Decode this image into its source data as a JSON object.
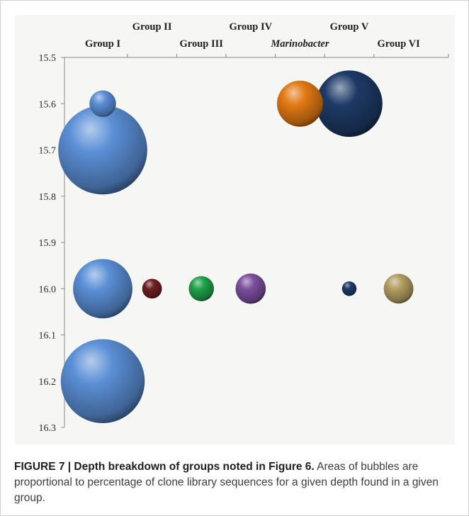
{
  "caption": {
    "label": "FIGURE 7 | Depth breakdown of groups noted in ",
    "ref": "Figure 6",
    "period": ".",
    "text": " Areas of bubbles are proportional to percentage of clone library sequences for a given depth found in a given group."
  },
  "chart_data": {
    "type": "bubble",
    "categories": [
      "Group I",
      "Group II",
      "Group III",
      "Group IV",
      "Marinobacter",
      "Group V",
      "Group VI"
    ],
    "italic_categories": [
      "Marinobacter"
    ],
    "y_reversed": true,
    "ylim": [
      15.5,
      16.3
    ],
    "yticks": [
      "15.5",
      "15.6",
      "15.7",
      "15.8",
      "15.9",
      "16.0",
      "16.1",
      "16.2",
      "16.3"
    ],
    "colors": {
      "Group I": "#5b8fd6",
      "Group II": "#6e1f1f",
      "Group III": "#1fa34a",
      "Group IV": "#7b4f9e",
      "Marinobacter": "#e37a15",
      "Group V": "#1e3a66",
      "Group VI": "#b39e62"
    },
    "bubbles": [
      {
        "group": "Group I",
        "depth": 15.6,
        "size": 4
      },
      {
        "group": "Group I",
        "depth": 15.7,
        "size": 45
      },
      {
        "group": "Group I",
        "depth": 16.0,
        "size": 20
      },
      {
        "group": "Group I",
        "depth": 16.2,
        "size": 40
      },
      {
        "group": "Group II",
        "depth": 16.0,
        "size": 2.2
      },
      {
        "group": "Group III",
        "depth": 16.0,
        "size": 3.6
      },
      {
        "group": "Group IV",
        "depth": 16.0,
        "size": 5.2
      },
      {
        "group": "Marinobacter",
        "depth": 15.6,
        "size": 12
      },
      {
        "group": "Group V",
        "depth": 15.6,
        "size": 25
      },
      {
        "group": "Group V",
        "depth": 16.0,
        "size": 1.2
      },
      {
        "group": "Group VI",
        "depth": 16.0,
        "size": 5
      }
    ]
  }
}
